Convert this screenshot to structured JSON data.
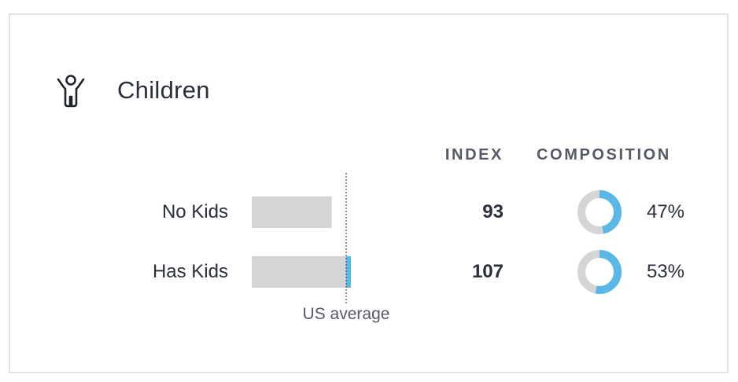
{
  "title": "Children",
  "icons": {
    "title_icon": "child-icon"
  },
  "headers": {
    "index": "INDEX",
    "composition": "COMPOSITION"
  },
  "colors": {
    "bar": "#d4d5d7",
    "accent": "#5bb8e6",
    "ring_bg": "#d4d5d7",
    "text": "#2b2f3a"
  },
  "chart_data": {
    "type": "bar",
    "orientation": "horizontal",
    "categories": [
      "No Kids",
      "Has Kids"
    ],
    "index_values": [
      93,
      107
    ],
    "composition_pct": [
      47,
      53
    ],
    "baseline_index": 100,
    "baseline_label": "US average",
    "index_display": [
      "93",
      "107"
    ],
    "composition_display": [
      "47%",
      "53%"
    ]
  }
}
